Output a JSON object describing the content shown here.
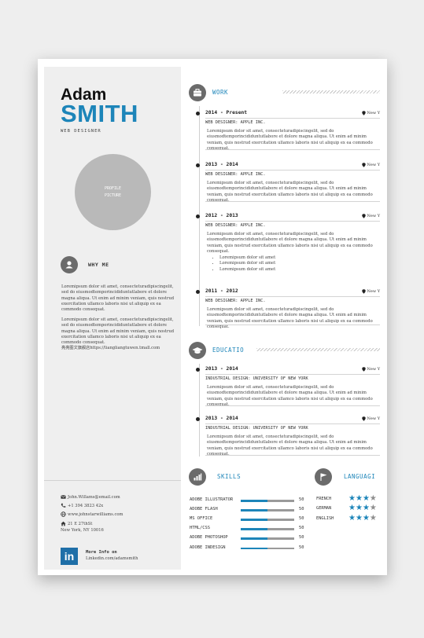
{
  "header": {
    "first_name": "Adam",
    "last_name": "SMITH",
    "job_title": "WEB DESIGNER"
  },
  "photo": {
    "label": "PROFILE PICTURE"
  },
  "about": {
    "title": "WHY ME",
    "paragraphs": [
      "Loremipsum dolor sit amet, consecteturadipiscingelit, sed do eiusmodtemporincididuntutlabore et dolore magna aliqua. Ut enim ad minim veniam, quis nostrud exercitation ullamco laboris nisi ut aliquip ex ea commodo consequat.",
      "Loremipsum dolor sit amet, consecteturadipiscingelit, sed do eiusmodtemporincididuntutlabore et dolore magna aliqua. Ut enim ad minim veniam, quis nostrud exercitation ullamco laboris nisi ut aliquip ex ea commodo consequat.",
      "亮亮图文旗舰店https://liangliangtuwen.tmall.com"
    ]
  },
  "contact": {
    "email": "John.Willams@email.com",
    "phone": "+1 394 3823 42x",
    "website": "www.johnstarwilliams.com",
    "address_line1": "21 E 27thSt",
    "address_line2": "New York, NY 10016"
  },
  "linkedin": {
    "logo": "in",
    "title": "More Info on",
    "url": "Linkedin.com/adamsmith"
  },
  "work": {
    "title": "WORK",
    "entries": [
      {
        "date": "2014 - Present",
        "location": "New Y",
        "role": "WEB DESIGNER: APPLE INC.",
        "description": "Loremipsum dolor sit amet, consecteturadipiscingelit, sed do eiusmodtemporincididuntutlabore et dolore magna aliqua. Ut enim ad minim veniam, quis nostrud exercitation ullamco laboris nisi ut aliquip ex ea commodo consequat."
      },
      {
        "date": "2013 - 2014",
        "location": "New Y",
        "role": "WEB DESIGNER: APPLE INC.",
        "description": "Loremipsum dolor sit amet, consecteturadipiscingelit, sed do eiusmodtemporincididuntutlabore et dolore magna aliqua. Ut enim ad minim veniam, quis nostrud exercitation ullamco laboris nisi ut aliquip ex ea commodo consequat."
      },
      {
        "date": "2012 - 2013",
        "location": "New Y",
        "role": "WEB DESIGNER: APPLE INC.",
        "description": "Loremipsum dolor sit amet, consecteturadipiscingelit, sed do eiusmodtemporincididuntutlabore et dolore magna aliqua. Ut enim ad minim veniam, quis nostrud exercitation ullamco laboris nisi ut aliquip ex ea commodo consequat.",
        "bullets": [
          "Loremipsum dolor sit amet",
          "Loremipsum dolor sit amet",
          "Loremipsum dolor sit amet"
        ]
      },
      {
        "date": "2011 - 2012",
        "location": "New Y",
        "role": "WEB DESIGNER: APPLE INC.",
        "description": "Loremipsum dolor sit amet, consecteturadipiscingelit, sed do eiusmodtemporincididuntutlabore et dolore magna aliqua. Ut enim ad minim veniam, quis nostrud exercitation ullamco laboris nisi ut aliquip ex ea commodo consequat."
      }
    ]
  },
  "education": {
    "title": "EDUCATIO",
    "entries": [
      {
        "date": "2013 - 2014",
        "location": "New Y",
        "role": "INDUSTRIAL DESIGN: UNIVERSITY OF NEW YORK",
        "description": "Loremipsum dolor sit amet, consecteturadipiscingelit, sed do eiusmodtemporincididuntutlabore et dolore magna aliqua. Ut enim ad minim veniam, quis nostrud exercitation ullamco laboris nisi ut aliquip ex ea commodo consequat."
      },
      {
        "date": "2013 - 2014",
        "location": "New Y",
        "role": "INDUSTRIAL DESIGN: UNIVERSITY OF NEW YORK",
        "description": "Loremipsum dolor sit amet, consecteturadipiscingelit, sed do eiusmodtemporincididuntutlabore et dolore magna aliqua. Ut enim ad minim veniam, quis nostrud exercitation ullamco laboris nisi ut aliquip ex ea commodo consequat."
      }
    ]
  },
  "skills": {
    "title": "SKILLS",
    "items": [
      {
        "name": "ADOBE ILLUSTRATOR",
        "value": "50",
        "level": 0.5
      },
      {
        "name": "ADOBE FLASH",
        "value": "50",
        "level": 0.5
      },
      {
        "name": "MS OFFICE",
        "value": "50",
        "level": 0.5
      },
      {
        "name": "HTML/CSS",
        "value": "50",
        "level": 0.5
      },
      {
        "name": "ADOBE PHOTOSHOP",
        "value": "50",
        "level": 0.5
      },
      {
        "name": "ADOBE INDESIGN",
        "value": "50",
        "level": 0.5
      }
    ]
  },
  "languages": {
    "title": "LANGUAGI",
    "items": [
      {
        "name": "FRENCH",
        "stars": 3,
        "max": 4
      },
      {
        "name": "GERMAN",
        "stars": 3,
        "max": 4
      },
      {
        "name": "ENGLISH",
        "stars": 3,
        "max": 4
      }
    ]
  },
  "colors": {
    "accent": "#1d85b9",
    "icon_gray": "#6b6b6b",
    "sidebar_bg": "#efefef"
  },
  "icons": [
    "briefcase-icon",
    "graduation-cap-icon",
    "bar-chart-icon",
    "flag-icon",
    "user-icon",
    "envelope-icon",
    "phone-icon",
    "globe-icon",
    "home-icon",
    "map-pin-icon",
    "star-icon"
  ]
}
